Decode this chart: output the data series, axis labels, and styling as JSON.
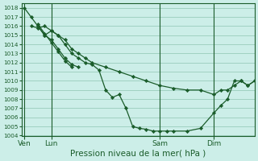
{
  "background_color": "#cceee8",
  "grid_color": "#99ccbb",
  "line_color": "#1a5c2a",
  "marker_color": "#1a5c2a",
  "title": "Pression niveau de la mer( hPa )",
  "xlabel_fontsize": 7.5,
  "ylim": [
    1004,
    1018.5
  ],
  "yticks": [
    1004,
    1005,
    1006,
    1007,
    1008,
    1009,
    1010,
    1011,
    1012,
    1013,
    1014,
    1015,
    1016,
    1017,
    1018
  ],
  "xtick_labels": [
    "Ven",
    "Lun",
    "Sam",
    "Dim"
  ],
  "xtick_positions": [
    0,
    2,
    10,
    14
  ],
  "xlim": [
    -0.2,
    17
  ],
  "vline_positions": [
    0,
    2,
    10,
    14
  ],
  "series": [
    {
      "x": [
        0,
        0.5,
        1,
        1.5,
        2,
        2.5,
        3,
        3.5,
        4,
        4.5,
        5,
        5.5,
        6,
        6.5,
        7,
        7.5,
        8,
        8.5,
        9,
        9.5,
        10,
        10.5,
        11,
        12,
        13,
        14,
        14.5,
        15,
        15.5,
        16,
        16.5,
        17
      ],
      "y": [
        1018,
        1017,
        1016,
        1015,
        1015.5,
        1015,
        1014,
        1013,
        1012.5,
        1012,
        1011.8,
        1011.2,
        1009,
        1008.2,
        1008.5,
        1007,
        1005,
        1004.8,
        1004.7,
        1004.5,
        1004.5,
        1004.5,
        1004.5,
        1004.5,
        1004.8,
        1006.5,
        1007.3,
        1008,
        1010,
        1010,
        1009.5,
        1010
      ]
    },
    {
      "x": [
        0.5,
        1,
        1.5,
        2,
        2.5,
        3,
        3.5,
        4,
        4.5,
        5,
        6,
        7,
        8,
        9,
        10,
        11,
        12,
        13,
        14,
        14.5,
        15,
        15.5,
        16,
        16.5,
        17
      ],
      "y": [
        1016,
        1015.8,
        1016,
        1015.5,
        1015,
        1014.5,
        1013.5,
        1013,
        1012.5,
        1012,
        1011.5,
        1011,
        1010.5,
        1010,
        1009.5,
        1009.2,
        1009,
        1009,
        1008.5,
        1009,
        1009,
        1009.5,
        1010,
        1009.5,
        1010
      ]
    },
    {
      "x": [
        1,
        1.5,
        2,
        2.5,
        3,
        3.5,
        4
      ],
      "y": [
        1016,
        1015,
        1014.5,
        1013.5,
        1012.5,
        1011.8,
        1011.5
      ]
    },
    {
      "x": [
        1,
        1.5,
        2,
        2.5,
        3,
        3.5
      ],
      "y": [
        1016.2,
        1015.2,
        1014.2,
        1013.2,
        1012.2,
        1011.5
      ]
    }
  ]
}
